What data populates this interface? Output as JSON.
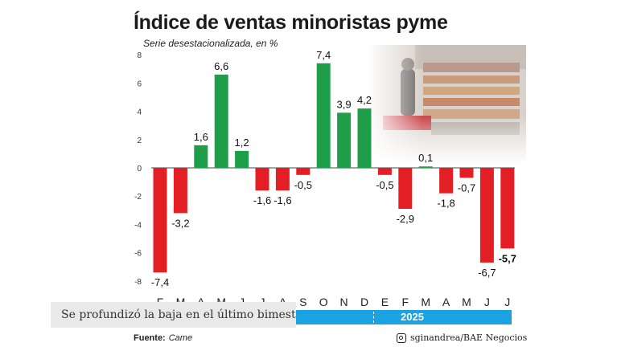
{
  "header": {
    "title": "Índice de ventas minoristas pyme",
    "subtitle": "Serie desestacionalizada, en %"
  },
  "caption": "Se profundizó la baja en el último bimestre",
  "footer": {
    "source_label": "Fuente:",
    "source_value": "Came",
    "credit": "sginandrea/BAE Negocios",
    "credit_icon": "instagram-icon"
  },
  "photo": {
    "kind": "supermarket-shelves"
  },
  "colors": {
    "positive": "#1f9e4a",
    "negative": "#e31e24",
    "year_band": "#1aa3e0"
  },
  "chart_data": {
    "type": "bar",
    "categories": [
      "F",
      "M",
      "A",
      "M",
      "J",
      "J",
      "A",
      "S",
      "O",
      "N",
      "D",
      "E",
      "F",
      "M",
      "A",
      "M",
      "J",
      "J"
    ],
    "values": [
      -7.4,
      -3.2,
      1.6,
      6.6,
      1.2,
      -1.6,
      -1.6,
      -0.5,
      7.4,
      3.9,
      4.2,
      -0.5,
      -2.9,
      0.1,
      -1.8,
      -0.7,
      -6.7,
      -5.7
    ],
    "value_labels": [
      "-7,4",
      "-3,2",
      "1,6",
      "6,6",
      "1,2",
      "-1,6",
      "-1,6",
      "-0,5",
      "7,4",
      "3,9",
      "4,2",
      "-0,5",
      "-2,9",
      "0,1",
      "-1,8",
      "-0,7",
      "-6,7",
      "-5,7"
    ],
    "y_ticks": [
      "8",
      "6",
      "4",
      "2",
      "0",
      "-2",
      "-4",
      "-6",
      "-8"
    ],
    "ylim": [
      -8,
      8
    ],
    "year_label": "2025",
    "year_start_index": 11,
    "grid": false,
    "legend": "none"
  }
}
